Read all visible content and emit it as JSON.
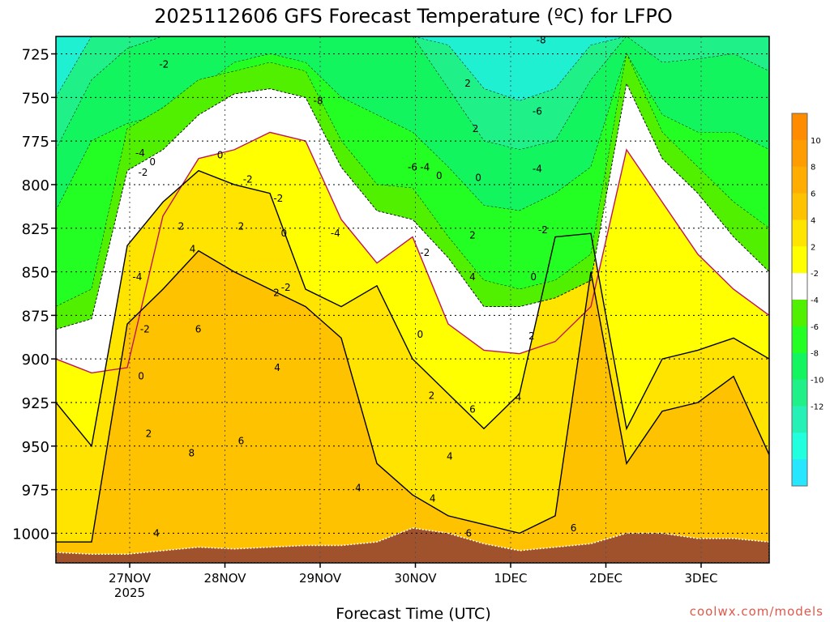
{
  "chart_data": {
    "type": "heatmap",
    "title": "2025112606 GFS Forecast Temperature (ºC) for LFPO",
    "xlabel": "Forecast Time (UTC)",
    "ylabel": "",
    "y_reversed": true,
    "ylim": [
      715,
      1017
    ],
    "y_ticks": [
      "725",
      "750",
      "775",
      "800",
      "825",
      "850",
      "875",
      "900",
      "925",
      "950",
      "975",
      "1000"
    ],
    "x_ticks": [
      {
        "label": "27NOV",
        "sublabel": "2025"
      },
      {
        "label": "28NOV",
        "sublabel": ""
      },
      {
        "label": "29NOV",
        "sublabel": ""
      },
      {
        "label": "30NOV",
        "sublabel": ""
      },
      {
        "label": "1DEC",
        "sublabel": ""
      },
      {
        "label": "2DEC",
        "sublabel": ""
      },
      {
        "label": "3DEC",
        "sublabel": ""
      }
    ],
    "grid": true,
    "colorbar": {
      "placement": "right",
      "levels": [
        12,
        10,
        8,
        6,
        4,
        2,
        0,
        -2,
        -4,
        -6,
        -8,
        -10,
        -12,
        -14
      ],
      "labels": [
        "10",
        "8",
        "6",
        "4",
        "2",
        "-2",
        "-4",
        "-6",
        "-8",
        "-10",
        "-12"
      ],
      "colors": [
        "#ff8c00",
        "#ff9c00",
        "#ffad00",
        "#ffc200",
        "#ffe400",
        "#ffff00",
        "#ffffff",
        "#50f000",
        "#23ff23",
        "#12f55e",
        "#1ff088",
        "#25f1b6",
        "#20ffde",
        "#26e7ff"
      ]
    },
    "temperature_bands": [
      {
        "name": "-10..-12",
        "color": "#1ff0d2",
        "top": [
          715,
          715,
          715,
          715,
          715,
          715,
          715,
          715,
          715,
          715,
          715,
          715,
          715,
          715,
          715,
          715,
          715,
          715,
          715,
          715,
          715
        ],
        "bottom": [
          750,
          715,
          715,
          715,
          715,
          715,
          715,
          715,
          715,
          715,
          715,
          720,
          745,
          752,
          745,
          720,
          715,
          715,
          715,
          715,
          715
        ]
      },
      {
        "name": "-8..-10",
        "color": "#1ff088",
        "top": [
          750,
          715,
          715,
          715,
          715,
          715,
          715,
          715,
          715,
          715,
          715,
          720,
          745,
          752,
          745,
          720,
          715,
          715,
          715,
          715,
          715
        ],
        "bottom": [
          780,
          740,
          722,
          715,
          715,
          715,
          715,
          715,
          715,
          715,
          715,
          745,
          775,
          780,
          775,
          740,
          715,
          730,
          728,
          725,
          735
        ]
      },
      {
        "name": "-6..-8",
        "color": "#12f55e",
        "top": [
          780,
          740,
          722,
          715,
          715,
          715,
          715,
          715,
          715,
          715,
          715,
          745,
          775,
          780,
          775,
          740,
          715,
          730,
          728,
          725,
          735
        ],
        "bottom": [
          815,
          775,
          765,
          760,
          745,
          730,
          725,
          730,
          750,
          760,
          770,
          790,
          812,
          815,
          805,
          790,
          725,
          760,
          770,
          770,
          780
        ]
      },
      {
        "name": "-4..-6",
        "color": "#23ff23",
        "top": [
          815,
          775,
          765,
          760,
          745,
          730,
          725,
          730,
          750,
          760,
          770,
          790,
          812,
          815,
          805,
          790,
          725,
          760,
          770,
          770,
          780
        ],
        "bottom": [
          870,
          860,
          768,
          756,
          740,
          735,
          730,
          735,
          775,
          800,
          802,
          830,
          855,
          860,
          855,
          840,
          725,
          770,
          790,
          810,
          825
        ]
      },
      {
        "name": "-2..-4",
        "color": "#50f000",
        "top": [
          870,
          860,
          768,
          756,
          740,
          735,
          730,
          735,
          775,
          800,
          802,
          830,
          855,
          860,
          855,
          840,
          725,
          770,
          790,
          810,
          825
        ],
        "bottom": [
          883,
          877,
          792,
          780,
          760,
          748,
          745,
          750,
          790,
          815,
          820,
          842,
          870,
          870,
          865,
          855,
          742,
          785,
          805,
          830,
          850
        ]
      }
    ],
    "temperature_lines": [
      {
        "label": "0",
        "color": "#c0145a",
        "values": [
          900,
          908,
          905,
          818,
          785,
          780,
          770,
          775,
          820,
          845,
          830,
          880,
          895,
          897,
          890,
          870,
          780,
          810,
          840,
          860,
          875
        ]
      },
      {
        "label": "2",
        "color": "#000000",
        "values": [
          925,
          950,
          835,
          810,
          792,
          800,
          805,
          860,
          870,
          858,
          900,
          920,
          940,
          920,
          830,
          828,
          940,
          900,
          895,
          888,
          900
        ]
      },
      {
        "label": "4",
        "color": "#000000",
        "values": [
          1005,
          1005,
          880,
          860,
          838,
          850,
          860,
          870,
          888,
          960,
          978,
          990,
          995,
          1000,
          990,
          850,
          960,
          930,
          925,
          910,
          955
        ]
      }
    ],
    "terrain_surface": [
      1011,
      1012,
      1012,
      1010,
      1008,
      1009,
      1008,
      1007,
      1007,
      1005,
      997,
      1000,
      1006,
      1010,
      1008,
      1006,
      1000,
      1000,
      1003,
      1003,
      1005
    ],
    "contour_labels": [
      {
        "text": "-2",
        "x": 0.36,
        "y": 731
      },
      {
        "text": "-4",
        "x": 0.11,
        "y": 782
      },
      {
        "text": "-2",
        "x": 0.14,
        "y": 793
      },
      {
        "text": "0",
        "x": 0.24,
        "y": 787
      },
      {
        "text": "-2",
        "x": 0.16,
        "y": 883
      },
      {
        "text": "0",
        "x": 0.12,
        "y": 910
      },
      {
        "text": "2",
        "x": 0.2,
        "y": 943
      },
      {
        "text": "4",
        "x": 0.28,
        "y": 1000
      },
      {
        "text": "-4",
        "x": 0.08,
        "y": 853
      },
      {
        "text": "2",
        "x": 0.54,
        "y": 824
      },
      {
        "text": "4",
        "x": 0.66,
        "y": 837
      },
      {
        "text": "6",
        "x": 0.72,
        "y": 883
      },
      {
        "text": "8",
        "x": 0.65,
        "y": 954
      },
      {
        "text": "0",
        "x": 0.95,
        "y": 783
      },
      {
        "text": "2",
        "x": 1.17,
        "y": 824
      },
      {
        "text": "-2",
        "x": 1.24,
        "y": 797
      },
      {
        "text": "-2",
        "x": 1.56,
        "y": 808
      },
      {
        "text": "0",
        "x": 1.62,
        "y": 828
      },
      {
        "text": "2",
        "x": 1.54,
        "y": 862
      },
      {
        "text": "-2",
        "x": 1.64,
        "y": 859
      },
      {
        "text": "4",
        "x": 1.55,
        "y": 905
      },
      {
        "text": "6",
        "x": 1.17,
        "y": 947
      },
      {
        "text": "-8",
        "x": 1.98,
        "y": 752
      },
      {
        "text": "-4",
        "x": 2.16,
        "y": 828
      },
      {
        "text": "-6",
        "x": 2.97,
        "y": 790
      },
      {
        "text": "-4",
        "x": 3.1,
        "y": 790
      },
      {
        "text": "0",
        "x": 3.25,
        "y": 795
      },
      {
        "text": "-2",
        "x": 3.1,
        "y": 839
      },
      {
        "text": "0",
        "x": 3.05,
        "y": 886
      },
      {
        "text": "4",
        "x": 2.4,
        "y": 974
      },
      {
        "text": "2",
        "x": 3.17,
        "y": 921
      },
      {
        "text": "2",
        "x": 3.55,
        "y": 742
      },
      {
        "text": "2",
        "x": 3.63,
        "y": 768
      },
      {
        "text": "0",
        "x": 3.66,
        "y": 796
      },
      {
        "text": "2",
        "x": 3.6,
        "y": 829
      },
      {
        "text": "4",
        "x": 3.6,
        "y": 853
      },
      {
        "text": "6",
        "x": 3.6,
        "y": 929
      },
      {
        "text": "4",
        "x": 3.18,
        "y": 980
      },
      {
        "text": "4",
        "x": 3.36,
        "y": 956
      },
      {
        "text": "6",
        "x": 3.56,
        "y": 1000
      },
      {
        "text": "-8",
        "x": 4.32,
        "y": 717
      },
      {
        "text": "-6",
        "x": 4.28,
        "y": 758
      },
      {
        "text": "-4",
        "x": 4.28,
        "y": 791
      },
      {
        "text": "-2",
        "x": 4.34,
        "y": 826
      },
      {
        "text": "0",
        "x": 4.24,
        "y": 853
      },
      {
        "text": "2",
        "x": 4.22,
        "y": 887
      },
      {
        "text": "4",
        "x": 4.08,
        "y": 922
      },
      {
        "text": "6",
        "x": 4.66,
        "y": 997
      }
    ]
  },
  "credit": "coolwx.com/models"
}
